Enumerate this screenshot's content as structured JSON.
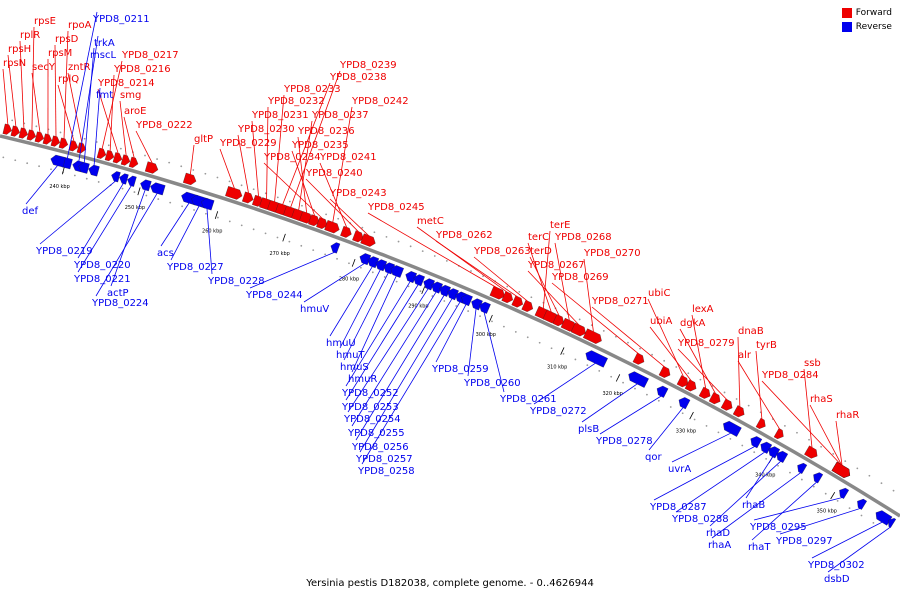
{
  "legend": {
    "forward": "Forward",
    "reverse": "Reverse"
  },
  "colors": {
    "forward": "#ee0000",
    "reverse": "#0000ee",
    "backbone": "#888888"
  },
  "caption": "Yersinia pestis D182038, complete genome. - 0..4626944",
  "ticks": [
    "240 kbp",
    "250 kbp",
    "260 kbp",
    "270 kbp",
    "280 kbp",
    "290 kbp",
    "300 kbp",
    "310 kbp",
    "320 kbp",
    "330 kbp",
    "340 kbp",
    "350 kbp"
  ],
  "forward_labels": [
    "rpsN",
    "rpsH",
    "rplR",
    "rpsE",
    "secY",
    "rpsM",
    "rpsD",
    "rpoA",
    "rplQ",
    "zntR",
    "YPD8_0217",
    "YPD8_0216",
    "YPD8_0214",
    "smg",
    "aroE",
    "YPD8_0222",
    "gltP",
    "YPD8_0229",
    "YPD8_0230",
    "YPD8_0231",
    "YPD8_0232",
    "YPD8_0233",
    "YPD8_0238",
    "YPD8_0239",
    "YPD8_0237",
    "YPD8_0236",
    "YPD8_0235",
    "YPD8_0234",
    "YPD8_0242",
    "YPD8_0241",
    "YPD8_0240",
    "YPD8_0243",
    "YPD8_0245",
    "metC",
    "YPD8_0262",
    "YPD8_0263",
    "terE",
    "terC",
    "terD",
    "YPD8_0268",
    "YPD8_0267",
    "YPD8_0270",
    "YPD8_0269",
    "YPD8_0271",
    "ubiC",
    "ubiA",
    "lexA",
    "dgkA",
    "YPD8_0279",
    "dnaB",
    "tyrB",
    "alr",
    "ssb",
    "YPD8_0284",
    "rhaS",
    "rhaR"
  ],
  "reverse_labels": [
    "YPD8_0211",
    "trkA",
    "mscL",
    "fmt",
    "def",
    "YPD8_0219",
    "YPD8_0220",
    "YPD8_0221",
    "actP",
    "YPD8_0224",
    "acs",
    "YPD8_0227",
    "YPD8_0228",
    "YPD8_0244",
    "hmuV",
    "hmuU",
    "hmuT",
    "hmuS",
    "hmuR",
    "YPD8_0252",
    "YPD8_0253",
    "YPD8_0254",
    "YPD8_0255",
    "YPD8_0256",
    "YPD8_0257",
    "YPD8_0258",
    "YPD8_0259",
    "YPD8_0260",
    "YPD8_0261",
    "YPD8_0272",
    "plsB",
    "YPD8_0278",
    "qor",
    "uvrA",
    "YPD8_0287",
    "YPD8_0288",
    "rhaB",
    "rhaD",
    "rhaA",
    "rhaT",
    "YPD8_0295",
    "YPD8_0297",
    "YPD8_0302",
    "dsbD"
  ]
}
